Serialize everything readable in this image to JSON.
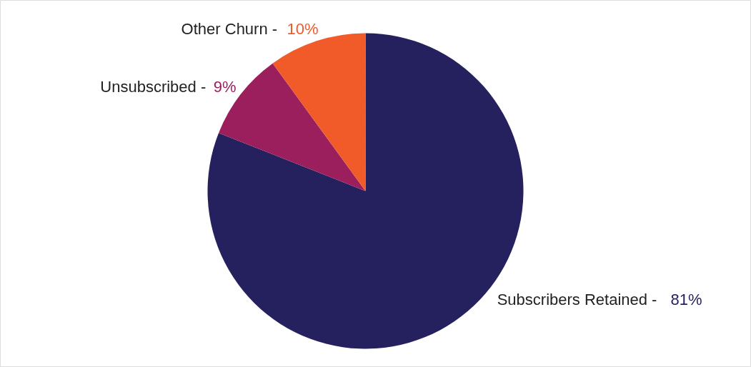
{
  "chart_data": {
    "type": "pie",
    "categories": [
      "Subscribers Retained -",
      "Unsubscribed -",
      "Other Churn -"
    ],
    "values": [
      81,
      9,
      10
    ],
    "colors": [
      "#25215f",
      "#9b1f5c",
      "#f15a29"
    ],
    "value_labels": [
      "81%",
      "9%",
      "10%"
    ]
  }
}
